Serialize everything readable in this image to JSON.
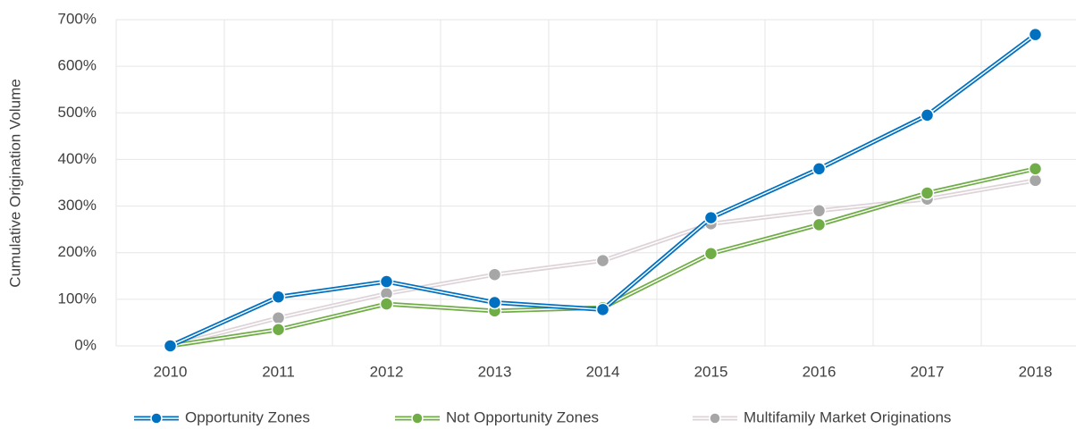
{
  "chart_data": {
    "type": "line",
    "y_label": "Cumulative Origination Volume",
    "categories": [
      "2010",
      "2011",
      "2012",
      "2013",
      "2014",
      "2015",
      "2016",
      "2017",
      "2018"
    ],
    "series": [
      {
        "name": "Opportunity Zones",
        "color": "#0070c0",
        "marker_color": "#0070c0",
        "values": [
          0,
          105,
          138,
          93,
          78,
          275,
          380,
          495,
          668
        ]
      },
      {
        "name": "Not Opportunity Zones",
        "color": "#70ad47",
        "marker_color": "#70ad47",
        "values": [
          0,
          35,
          90,
          75,
          82,
          198,
          260,
          328,
          380
        ]
      },
      {
        "name": "Multifamily Market Originations",
        "color": "#ddd3d8",
        "marker_color": "#a6a6a6",
        "values": [
          0,
          60,
          112,
          153,
          183,
          262,
          290,
          315,
          355
        ]
      }
    ],
    "ylim": [
      0,
      700
    ],
    "yticks": [
      {
        "value": 0,
        "label": "0%"
      },
      {
        "value": 100,
        "label": "100%"
      },
      {
        "value": 200,
        "label": "200%"
      },
      {
        "value": 300,
        "label": "300%"
      },
      {
        "value": 400,
        "label": "400%"
      },
      {
        "value": 500,
        "label": "500%"
      },
      {
        "value": 600,
        "label": "600%"
      },
      {
        "value": 700,
        "label": "700%"
      }
    ],
    "grid": true,
    "legend": "bottom"
  }
}
